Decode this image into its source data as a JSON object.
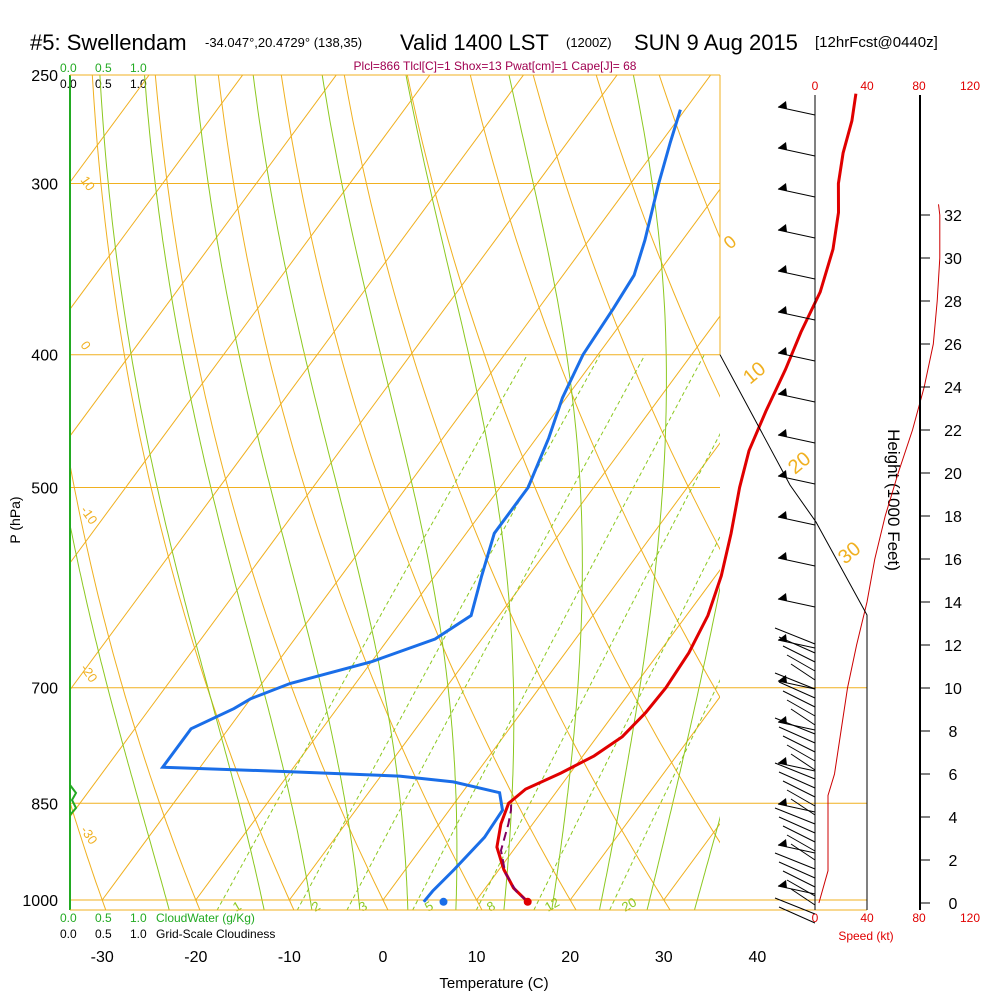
{
  "header": {
    "station": "#5: Swellendam",
    "coords": "-34.047°,20.4729° (138,35)",
    "valid_main": "Valid 1400 LST",
    "valid_utc": "(1200Z)",
    "date": "SUN 9 Aug 2015",
    "forecast": "[12hrFcst@0440z]"
  },
  "params_line": "Plcl=866 Tlcl[C]=1 Shox=13 Pwat[cm]=1 Cape[J]= 68",
  "colors": {
    "isotherm": "#f0b020",
    "dry_adiabat": "#f0b020",
    "moist_adiabat": "#8cc820",
    "mixing_ratio": "#8cc820",
    "temperature": "#e00000",
    "dewpoint": "#1a6ee8",
    "parcel": "#800060",
    "cloudwater": "#22aa22",
    "speed": "#cc0000",
    "params": "#a00050"
  },
  "top_scales": {
    "cloudwater": [
      "0.0",
      "0.5",
      "1.0"
    ],
    "cloudiness": [
      "0.0",
      "0.5",
      "1.0"
    ]
  },
  "bottom_scales": {
    "cloudwater": [
      "0.0",
      "0.5",
      "1.0"
    ],
    "cloudwater_label": "CloudWater (g/Kg)",
    "cloudiness": [
      "0.0",
      "0.5",
      "1.0"
    ],
    "cloudiness_label": "Grid-Scale Cloudiness"
  },
  "speed_scale": {
    "ticks": [
      "0",
      "40",
      "80",
      "120"
    ],
    "label": "Speed (kt)"
  },
  "chart_data": {
    "type": "line",
    "title": "#5: Swellendam Valid 1400 LST (1200Z) SUN 9 Aug 2015",
    "xlabel": "Temperature (C)",
    "ylabel": "P (hPa)",
    "y2label": "Height (1000 Feet)",
    "x_ticks": [
      "-30",
      "-20",
      "-10",
      "0",
      "10",
      "20",
      "30",
      "40"
    ],
    "y_ticks": [
      "250",
      "300",
      "400",
      "500",
      "700",
      "850",
      "1000"
    ],
    "height_ticks": [
      "0",
      "2",
      "4",
      "6",
      "8",
      "10",
      "12",
      "14",
      "16",
      "18",
      "20",
      "22",
      "24",
      "26",
      "28",
      "30",
      "32"
    ],
    "dry_adiabat_labels": [
      "10",
      "0",
      "-10",
      "-20",
      "-30",
      "0",
      "10",
      "20",
      "30"
    ],
    "mixing_ratio_labels": [
      "1",
      "2",
      "3",
      "5",
      "8",
      "12",
      "20"
    ],
    "ylim": [
      1000,
      250
    ],
    "xlim": [
      -34,
      46
    ],
    "series": [
      {
        "name": "Temperature",
        "points": [
          [
            15.6,
            1003
          ],
          [
            13,
            980
          ],
          [
            10.5,
            950
          ],
          [
            8,
            915
          ],
          [
            6.6,
            880
          ],
          [
            5.8,
            850
          ],
          [
            6.5,
            830
          ],
          [
            9,
            808
          ],
          [
            11.2,
            785
          ],
          [
            12.7,
            760
          ],
          [
            13.3,
            730
          ],
          [
            13.5,
            700
          ],
          [
            13.2,
            660
          ],
          [
            12.3,
            620
          ],
          [
            10.6,
            580
          ],
          [
            8.3,
            540
          ],
          [
            5.6,
            500
          ],
          [
            3.7,
            470
          ],
          [
            2.4,
            440
          ],
          [
            1.2,
            410
          ],
          [
            -0.1,
            385
          ],
          [
            -1.2,
            360
          ],
          [
            -3.2,
            335
          ],
          [
            -5.5,
            315
          ],
          [
            -7.8,
            300
          ],
          [
            -9.7,
            285
          ],
          [
            -11.3,
            270
          ],
          [
            -13,
            258
          ]
        ]
      },
      {
        "name": "Dewpoint",
        "points": [
          [
            4.5,
            1003
          ],
          [
            4.6,
            985
          ],
          [
            5.2,
            950
          ],
          [
            5.9,
            900
          ],
          [
            5.7,
            860
          ],
          [
            4,
            835
          ],
          [
            -1.8,
            820
          ],
          [
            -8,
            812
          ],
          [
            -20,
            806
          ],
          [
            -34,
            800
          ],
          [
            -34,
            750
          ],
          [
            -31,
            725
          ],
          [
            -30,
            713
          ],
          [
            -27,
            695
          ],
          [
            -20,
            670
          ],
          [
            -15,
            645
          ],
          [
            -13,
            620
          ],
          [
            -15,
            580
          ],
          [
            -17,
            540
          ],
          [
            -17,
            500
          ],
          [
            -18.7,
            460
          ],
          [
            -20.4,
            430
          ],
          [
            -21.6,
            400
          ],
          [
            -22,
            370
          ],
          [
            -22.4,
            350
          ],
          [
            -24,
            330
          ],
          [
            -27,
            300
          ],
          [
            -29,
            280
          ],
          [
            -30.5,
            265
          ]
        ]
      },
      {
        "name": "Parcel",
        "points": [
          [
            15.6,
            1003
          ],
          [
            13.5,
            985
          ],
          [
            10.9,
            955
          ],
          [
            8.7,
            920
          ],
          [
            7.4,
            880
          ],
          [
            6.6,
            860
          ],
          [
            5.8,
            845
          ]
        ]
      }
    ],
    "surface_dewpoint_marker": [
      6.6,
      1003
    ],
    "height_profile_speed_kt": [
      [
        0,
        3
      ],
      [
        1.5,
        10
      ],
      [
        3,
        10
      ],
      [
        5,
        10
      ],
      [
        6,
        15
      ],
      [
        8,
        20
      ],
      [
        10,
        25
      ],
      [
        12,
        32
      ],
      [
        14,
        40
      ],
      [
        16,
        46
      ],
      [
        18,
        54
      ],
      [
        20,
        64
      ],
      [
        22,
        75
      ],
      [
        24,
        84
      ],
      [
        26,
        91
      ],
      [
        28,
        94
      ],
      [
        30,
        96
      ],
      [
        32,
        96
      ],
      [
        32.5,
        95
      ]
    ]
  }
}
